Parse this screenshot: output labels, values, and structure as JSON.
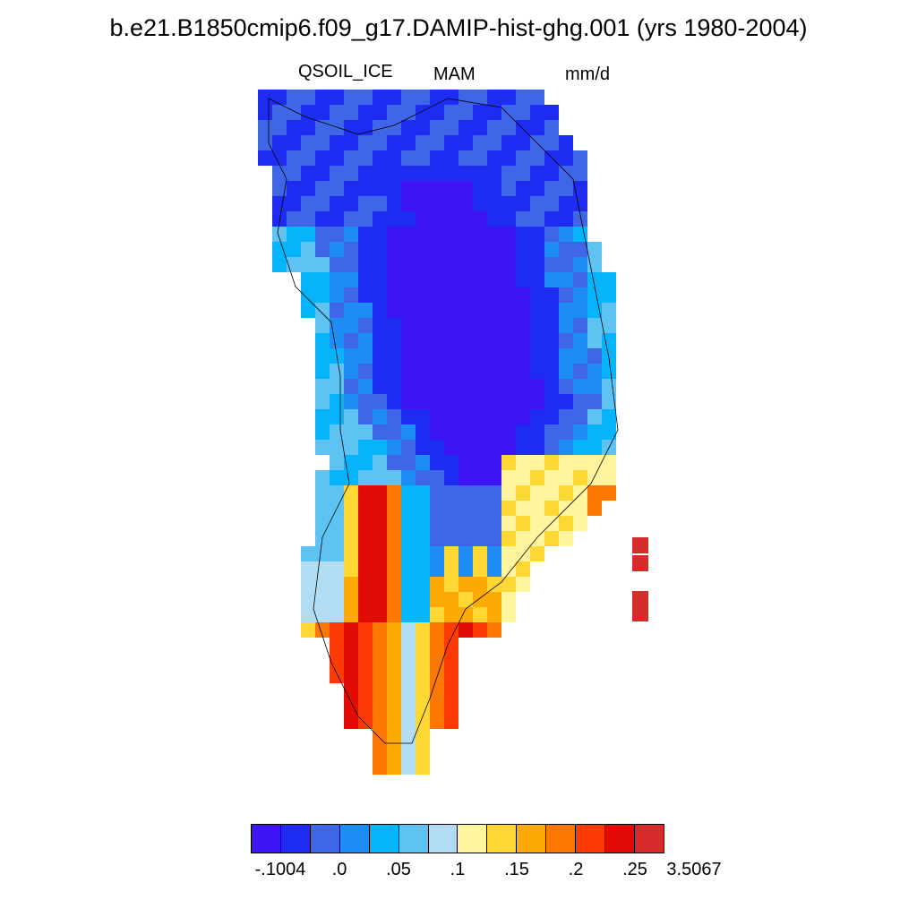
{
  "title": "b.e21.B1850cmip6.f09_g17.DAMIP-hist-ghg.001 (yrs 1980-2004)",
  "variable": "QSOIL_ICE",
  "season": "MAM",
  "units": "mm/d",
  "colorbar": {
    "colors": [
      "#3f14f5",
      "#1e2bf0",
      "#3e66e6",
      "#1e8cf5",
      "#05b4fa",
      "#5ec2f2",
      "#b2dcf2",
      "#fff59e",
      "#fdd733",
      "#fdaa06",
      "#fc7805",
      "#fb3a06",
      "#e00c05",
      "#d62b2b"
    ],
    "tick_labels": [
      "-.1004",
      ".0",
      ".05",
      ".1",
      ".15",
      ".2",
      ".25",
      "3.5067"
    ]
  }
}
